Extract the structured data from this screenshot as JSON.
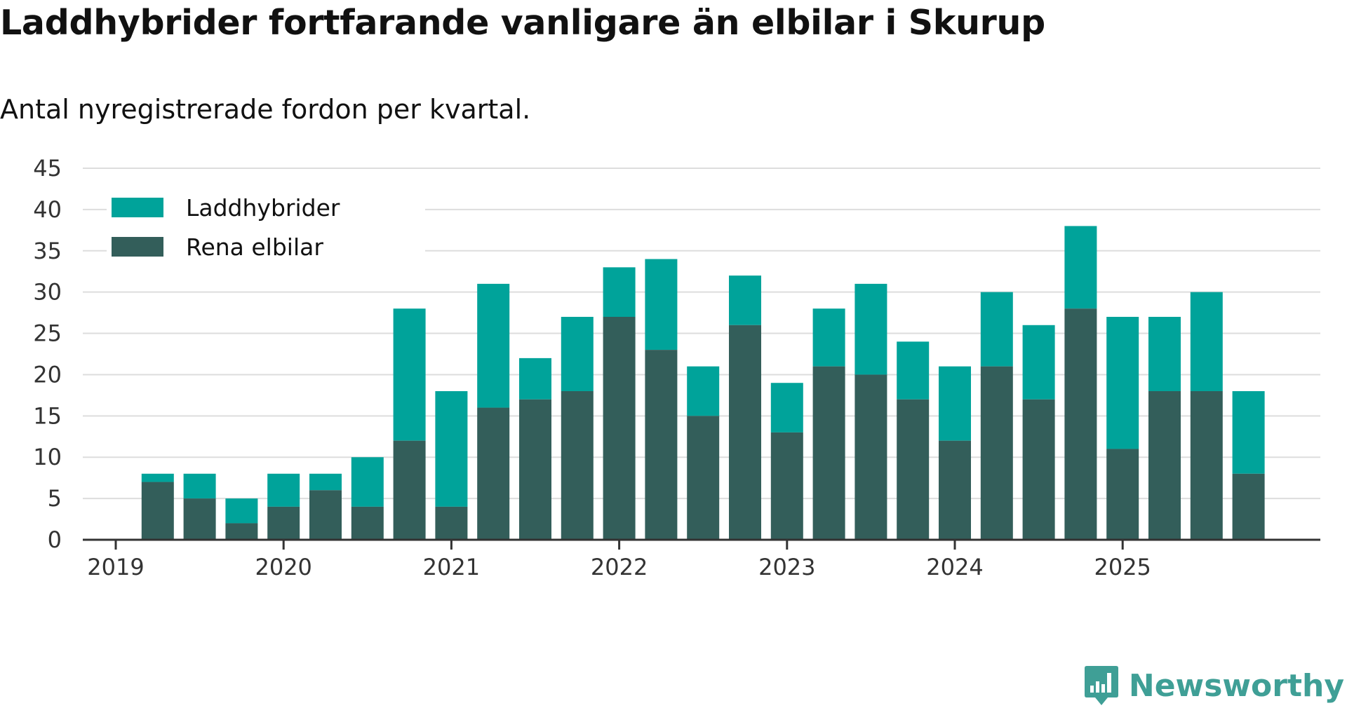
{
  "title": "Laddhybrider fortfarande vanligare än elbilar i Skurup",
  "subtitle": "Antal nyregistrerade fordon per kvartal.",
  "brand": "Newsworthy",
  "colors": {
    "laddhybrider": "#00a39a",
    "rena_elbilar": "#335e5a",
    "grid": "#dddddd",
    "axis": "#333333",
    "brand": "#3f9f96"
  },
  "chart_data": {
    "type": "bar",
    "stacked": true,
    "title": "Laddhybrider fortfarande vanligare än elbilar i Skurup",
    "subtitle": "Antal nyregistrerade fordon per kvartal.",
    "xlabel": "",
    "ylabel": "",
    "ylim": [
      0,
      45
    ],
    "yticks": [
      0,
      5,
      10,
      15,
      20,
      25,
      30,
      35,
      40,
      45
    ],
    "xticks": [
      "2019",
      "2020",
      "2021",
      "2022",
      "2023",
      "2024",
      "2025"
    ],
    "grid": true,
    "legend_position": "top-left",
    "categories": [
      "2019 Q2",
      "2019 Q3",
      "2019 Q4",
      "2020 Q1",
      "2020 Q2",
      "2020 Q3",
      "2020 Q4",
      "2021 Q1",
      "2021 Q2",
      "2021 Q3",
      "2021 Q4",
      "2022 Q1",
      "2022 Q2",
      "2022 Q3",
      "2022 Q4",
      "2023 Q1",
      "2023 Q2",
      "2023 Q3",
      "2023 Q4",
      "2024 Q1",
      "2024 Q2",
      "2024 Q3",
      "2024 Q4",
      "2025 Q1",
      "2025 Q2",
      "2025 Q3",
      "2025 Q4"
    ],
    "series": [
      {
        "name": "Rena elbilar",
        "color": "#335e5a",
        "values": [
          7,
          5,
          2,
          4,
          6,
          4,
          12,
          4,
          16,
          17,
          18,
          27,
          23,
          15,
          26,
          13,
          21,
          20,
          17,
          12,
          21,
          17,
          28,
          11,
          18,
          18,
          8
        ]
      },
      {
        "name": "Laddhybrider",
        "color": "#00a39a",
        "values": [
          1,
          3,
          3,
          4,
          2,
          6,
          16,
          14,
          15,
          5,
          9,
          6,
          11,
          6,
          6,
          6,
          7,
          11,
          7,
          9,
          9,
          9,
          10,
          16,
          9,
          12,
          10
        ]
      }
    ],
    "legend": [
      "Laddhybrider",
      "Rena elbilar"
    ]
  }
}
